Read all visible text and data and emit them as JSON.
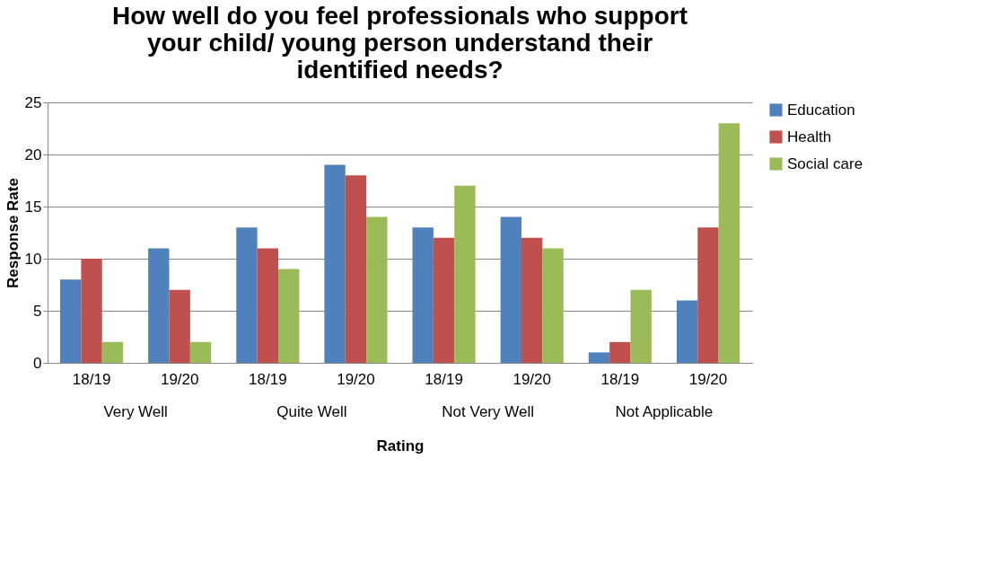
{
  "chart_data": {
    "type": "bar",
    "title": "How well do you feel professionals who support your child/ young person understand their identified needs?",
    "xlabel": "Rating",
    "ylabel": "Response Rate",
    "categories": [
      "18/19",
      "19/20",
      "18/19",
      "19/20",
      "18/19",
      "19/20",
      "18/19",
      "19/20"
    ],
    "annotations": [
      "Very Well",
      "Quite Well",
      "Not Very Well",
      "Not Applicable"
    ],
    "series": [
      {
        "name": "Education",
        "color": "#4f81bd",
        "values": [
          8,
          11,
          13,
          19,
          13,
          14,
          1,
          6
        ]
      },
      {
        "name": "Health",
        "color": "#c0504d",
        "values": [
          10,
          7,
          11,
          18,
          12,
          12,
          2,
          13
        ]
      },
      {
        "name": "Social care",
        "color": "#9bbb59",
        "values": [
          2,
          2,
          9,
          14,
          17,
          11,
          7,
          23
        ]
      }
    ],
    "ylim": [
      0,
      25
    ],
    "yticks": [
      0,
      5,
      10,
      15,
      20,
      25
    ],
    "grid": "y",
    "legend": "right"
  }
}
